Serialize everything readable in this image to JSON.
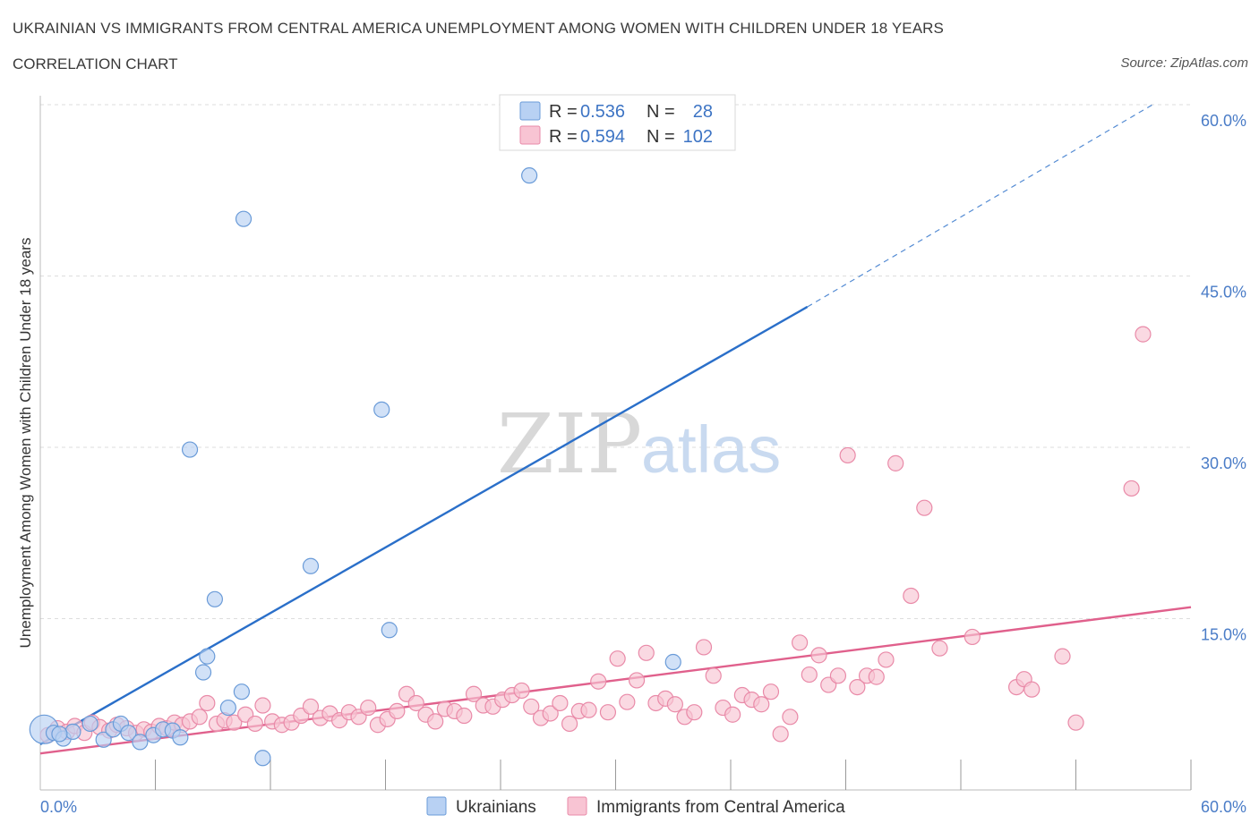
{
  "header": {
    "title": "UKRAINIAN VS IMMIGRANTS FROM CENTRAL AMERICA UNEMPLOYMENT AMONG WOMEN WITH CHILDREN UNDER 18 YEARS",
    "subtitle": "CORRELATION CHART",
    "source": "Source: ZipAtlas.com"
  },
  "watermark": {
    "zip": "ZIP",
    "atlas": "atlas"
  },
  "colors": {
    "blue_fill": "#b8d1f3",
    "blue_stroke": "#6a9bd8",
    "blue_line": "#2a6fc9",
    "pink_fill": "#f8c4d3",
    "pink_stroke": "#e98aa8",
    "pink_line": "#e0608c",
    "tick_label": "#4a7cc7",
    "grid": "#dddddd"
  },
  "legend": {
    "rows": [
      {
        "r_label": "R = ",
        "r_value": "0.536",
        "n_label": "N = ",
        "n_value": "28"
      },
      {
        "r_label": "R = ",
        "r_value": "0.594",
        "n_label": "N = ",
        "n_value": "102"
      }
    ]
  },
  "chart_data": {
    "type": "scatter",
    "title": "UKRAINIAN VS IMMIGRANTS FROM CENTRAL AMERICA UNEMPLOYMENT AMONG WOMEN WITH CHILDREN UNDER 18 YEARS",
    "xlabel": "",
    "ylabel": "Unemployment Among Women with Children Under 18 years",
    "xlim": [
      0,
      60
    ],
    "ylim": [
      0,
      60
    ],
    "x_tick_labels": [
      "0.0%",
      "60.0%"
    ],
    "y_ticks": [
      15,
      30,
      45,
      60
    ],
    "y_tick_labels": [
      "15.0%",
      "30.0%",
      "45.0%",
      "60.0%"
    ],
    "grid": true,
    "legend_position": "top-center",
    "series": [
      {
        "name": "Ukrainians",
        "r": 0.536,
        "n": 28,
        "trend": {
          "x0": 0,
          "y0": 4.0,
          "x1": 40,
          "y1": 42.3,
          "dash_to_x": 58,
          "dash_to_y": 60
        },
        "points": [
          {
            "x": 0.2,
            "y": 5.3,
            "big": true
          },
          {
            "x": 0.7,
            "y": 5.0
          },
          {
            "x": 1.2,
            "y": 4.5
          },
          {
            "x": 1.7,
            "y": 5.1
          },
          {
            "x": 2.6,
            "y": 5.8
          },
          {
            "x": 3.3,
            "y": 4.4
          },
          {
            "x": 3.8,
            "y": 5.3
          },
          {
            "x": 4.2,
            "y": 5.8
          },
          {
            "x": 4.6,
            "y": 5.0
          },
          {
            "x": 5.2,
            "y": 4.2
          },
          {
            "x": 5.9,
            "y": 4.8
          },
          {
            "x": 6.4,
            "y": 5.3
          },
          {
            "x": 6.9,
            "y": 5.2
          },
          {
            "x": 7.3,
            "y": 4.6
          },
          {
            "x": 7.8,
            "y": 29.8
          },
          {
            "x": 8.5,
            "y": 10.3
          },
          {
            "x": 8.7,
            "y": 11.7
          },
          {
            "x": 9.1,
            "y": 16.7
          },
          {
            "x": 9.8,
            "y": 7.2
          },
          {
            "x": 10.5,
            "y": 8.6
          },
          {
            "x": 10.6,
            "y": 50.0
          },
          {
            "x": 11.6,
            "y": 2.8
          },
          {
            "x": 14.1,
            "y": 19.6
          },
          {
            "x": 17.8,
            "y": 33.3
          },
          {
            "x": 18.2,
            "y": 14.0
          },
          {
            "x": 25.5,
            "y": 53.8
          },
          {
            "x": 33.0,
            "y": 11.2
          },
          {
            "x": 1.0,
            "y": 4.9
          }
        ]
      },
      {
        "name": "Immigrants from Central America",
        "r": 0.594,
        "n": 102,
        "trend": {
          "x0": 0,
          "y0": 3.2,
          "x1": 60,
          "y1": 16.0
        },
        "points": [
          {
            "x": 0.4,
            "y": 4.8
          },
          {
            "x": 0.9,
            "y": 5.4
          },
          {
            "x": 1.4,
            "y": 5.1
          },
          {
            "x": 1.8,
            "y": 5.6
          },
          {
            "x": 2.3,
            "y": 5.0
          },
          {
            "x": 2.7,
            "y": 5.9
          },
          {
            "x": 3.1,
            "y": 5.5
          },
          {
            "x": 3.6,
            "y": 5.2
          },
          {
            "x": 4.0,
            "y": 5.7
          },
          {
            "x": 4.5,
            "y": 5.4
          },
          {
            "x": 5.0,
            "y": 5.0
          },
          {
            "x": 5.4,
            "y": 5.3
          },
          {
            "x": 5.8,
            "y": 5.1
          },
          {
            "x": 6.2,
            "y": 5.6
          },
          {
            "x": 6.6,
            "y": 5.4
          },
          {
            "x": 7.0,
            "y": 5.9
          },
          {
            "x": 7.4,
            "y": 5.7
          },
          {
            "x": 7.8,
            "y": 6.0
          },
          {
            "x": 8.3,
            "y": 6.4
          },
          {
            "x": 8.7,
            "y": 7.6
          },
          {
            "x": 9.2,
            "y": 5.8
          },
          {
            "x": 9.6,
            "y": 6.1
          },
          {
            "x": 10.1,
            "y": 5.9
          },
          {
            "x": 10.7,
            "y": 6.6
          },
          {
            "x": 11.2,
            "y": 5.8
          },
          {
            "x": 11.6,
            "y": 7.4
          },
          {
            "x": 12.1,
            "y": 6.0
          },
          {
            "x": 12.6,
            "y": 5.7
          },
          {
            "x": 13.1,
            "y": 5.9
          },
          {
            "x": 13.6,
            "y": 6.5
          },
          {
            "x": 14.1,
            "y": 7.3
          },
          {
            "x": 14.6,
            "y": 6.3
          },
          {
            "x": 15.1,
            "y": 6.7
          },
          {
            "x": 15.6,
            "y": 6.1
          },
          {
            "x": 16.1,
            "y": 6.8
          },
          {
            "x": 16.6,
            "y": 6.4
          },
          {
            "x": 17.1,
            "y": 7.2
          },
          {
            "x": 17.6,
            "y": 5.7
          },
          {
            "x": 18.1,
            "y": 6.2
          },
          {
            "x": 18.6,
            "y": 6.9
          },
          {
            "x": 19.1,
            "y": 8.4
          },
          {
            "x": 19.6,
            "y": 7.6
          },
          {
            "x": 20.1,
            "y": 6.6
          },
          {
            "x": 20.6,
            "y": 6.0
          },
          {
            "x": 21.1,
            "y": 7.1
          },
          {
            "x": 21.6,
            "y": 6.9
          },
          {
            "x": 22.1,
            "y": 6.5
          },
          {
            "x": 22.6,
            "y": 8.4
          },
          {
            "x": 23.1,
            "y": 7.4
          },
          {
            "x": 23.6,
            "y": 7.3
          },
          {
            "x": 24.1,
            "y": 7.9
          },
          {
            "x": 24.6,
            "y": 8.3
          },
          {
            "x": 25.1,
            "y": 8.7
          },
          {
            "x": 25.6,
            "y": 7.3
          },
          {
            "x": 26.1,
            "y": 6.3
          },
          {
            "x": 26.6,
            "y": 6.7
          },
          {
            "x": 27.1,
            "y": 7.6
          },
          {
            "x": 27.6,
            "y": 5.8
          },
          {
            "x": 28.1,
            "y": 6.9
          },
          {
            "x": 28.6,
            "y": 7.0
          },
          {
            "x": 29.1,
            "y": 9.5
          },
          {
            "x": 29.6,
            "y": 6.8
          },
          {
            "x": 30.1,
            "y": 11.5
          },
          {
            "x": 30.6,
            "y": 7.7
          },
          {
            "x": 31.1,
            "y": 9.6
          },
          {
            "x": 31.6,
            "y": 12.0
          },
          {
            "x": 32.1,
            "y": 7.6
          },
          {
            "x": 32.6,
            "y": 8.0
          },
          {
            "x": 33.1,
            "y": 7.5
          },
          {
            "x": 33.6,
            "y": 6.4
          },
          {
            "x": 34.1,
            "y": 6.8
          },
          {
            "x": 34.6,
            "y": 12.5
          },
          {
            "x": 35.1,
            "y": 10.0
          },
          {
            "x": 35.6,
            "y": 7.2
          },
          {
            "x": 36.1,
            "y": 6.6
          },
          {
            "x": 36.6,
            "y": 8.3
          },
          {
            "x": 37.1,
            "y": 7.9
          },
          {
            "x": 37.6,
            "y": 7.5
          },
          {
            "x": 38.1,
            "y": 8.6
          },
          {
            "x": 38.6,
            "y": 4.9
          },
          {
            "x": 39.1,
            "y": 6.4
          },
          {
            "x": 39.6,
            "y": 12.9
          },
          {
            "x": 40.1,
            "y": 10.1
          },
          {
            "x": 40.6,
            "y": 11.8
          },
          {
            "x": 41.1,
            "y": 9.2
          },
          {
            "x": 41.6,
            "y": 10.0
          },
          {
            "x": 42.1,
            "y": 29.3
          },
          {
            "x": 42.6,
            "y": 9.0
          },
          {
            "x": 43.1,
            "y": 10.0
          },
          {
            "x": 43.6,
            "y": 9.9
          },
          {
            "x": 44.1,
            "y": 11.4
          },
          {
            "x": 44.6,
            "y": 28.6
          },
          {
            "x": 45.4,
            "y": 17.0
          },
          {
            "x": 46.1,
            "y": 24.7
          },
          {
            "x": 46.9,
            "y": 12.4
          },
          {
            "x": 48.6,
            "y": 13.4
          },
          {
            "x": 50.9,
            "y": 9.0
          },
          {
            "x": 51.3,
            "y": 9.7
          },
          {
            "x": 51.7,
            "y": 8.8
          },
          {
            "x": 53.3,
            "y": 11.7
          },
          {
            "x": 54.0,
            "y": 5.9
          },
          {
            "x": 56.9,
            "y": 26.4
          },
          {
            "x": 57.5,
            "y": 39.9
          }
        ]
      }
    ]
  },
  "bottom_legend": {
    "items": [
      {
        "label": "Ukrainians"
      },
      {
        "label": "Immigrants from Central America"
      }
    ]
  }
}
